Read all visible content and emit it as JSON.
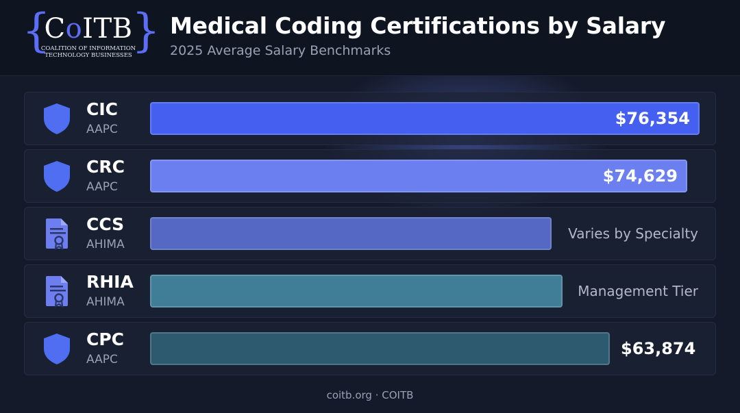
{
  "logo": {
    "wordmark_start": "C",
    "wordmark_o": "o",
    "wordmark_end": "ITB",
    "tagline_line1": "COALITION OF INFORMATION",
    "tagline_line2": "TECHNOLOGY BUSINESSES"
  },
  "header": {
    "title": "Medical Coding Certifications by Salary",
    "subtitle": "2025 Average Salary Benchmarks"
  },
  "footer": {
    "text": "coitb.org · COITB"
  },
  "colors": {
    "accent": "#5b6ef5",
    "background": "#141a2a"
  },
  "chart_data": {
    "type": "bar",
    "orientation": "horizontal",
    "title": "Medical Coding Certifications by Salary",
    "subtitle": "2025 Average Salary Benchmarks",
    "xlim": [
      0,
      80000
    ],
    "grid": false,
    "rows": [
      {
        "cert": "CIC",
        "body": "AAPC",
        "value": 76354,
        "label": "$76,354",
        "label_position": "inside",
        "color": "#4560f0",
        "icon": "shield-icon"
      },
      {
        "cert": "CRC",
        "body": "AAPC",
        "value": 74629,
        "label": "$74,629",
        "label_position": "inside",
        "color": "#6b7ff0",
        "icon": "shield-icon"
      },
      {
        "cert": "CCS",
        "body": "AHIMA",
        "value": 55800,
        "label": "Varies by Specialty",
        "label_position": "outside-note",
        "color": "#5468c4",
        "icon": "certificate-icon"
      },
      {
        "cert": "RHIA",
        "body": "AHIMA",
        "value": 57300,
        "label": "Management Tier",
        "label_position": "outside-note",
        "color": "#3f7e96",
        "icon": "certificate-icon"
      },
      {
        "cert": "CPC",
        "body": "AAPC",
        "value": 63874,
        "label": "$63,874",
        "label_position": "outside-value",
        "color": "#2d5a6e",
        "icon": "shield-icon"
      }
    ]
  }
}
